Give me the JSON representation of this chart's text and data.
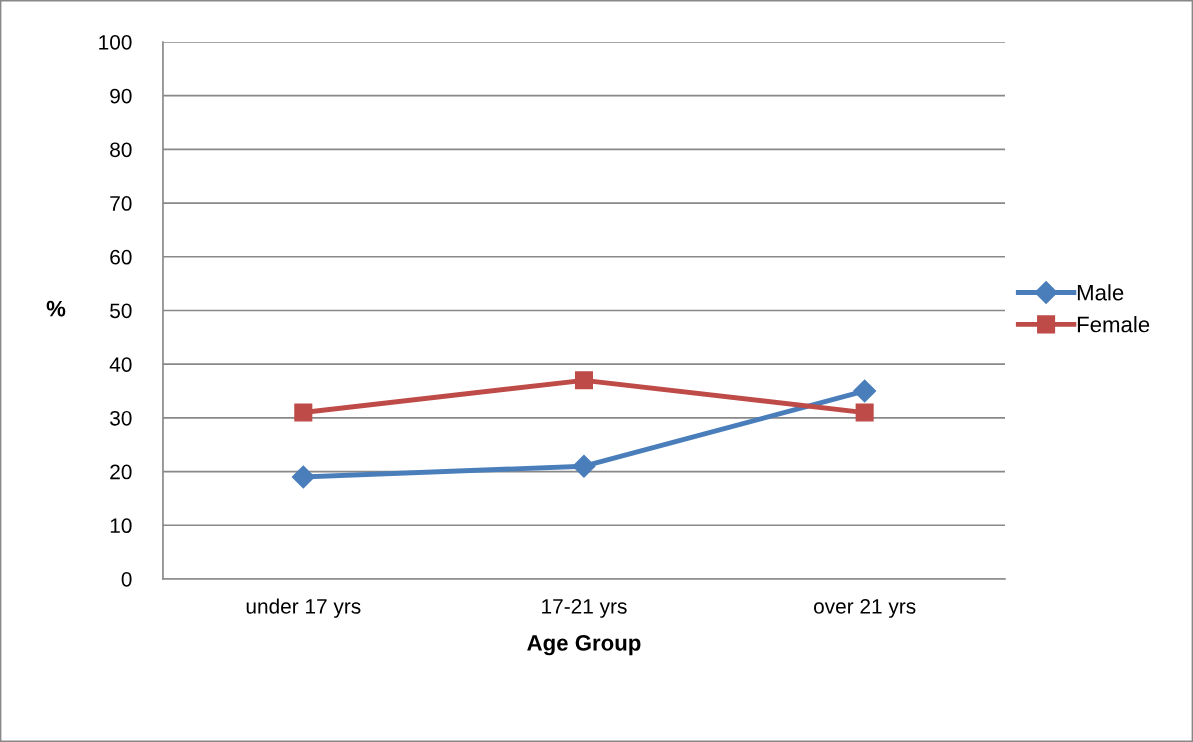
{
  "chart_data": {
    "type": "line",
    "xlabel": "Age Group",
    "ylabel": "%",
    "categories": [
      "under 17 yrs",
      "17-21 yrs",
      "over 21 yrs"
    ],
    "series": [
      {
        "name": "Male",
        "color": "#4a7ebb",
        "marker": "diamond",
        "values": [
          19,
          21,
          35
        ]
      },
      {
        "name": "Female",
        "color": "#be4b48",
        "marker": "square",
        "values": [
          31,
          37,
          31
        ]
      }
    ],
    "ylim": [
      0,
      100
    ],
    "yticks": [
      0,
      10,
      20,
      30,
      40,
      50,
      60,
      70,
      80,
      90,
      100
    ],
    "grid": "y",
    "legend": "right",
    "line_style": "solid"
  }
}
